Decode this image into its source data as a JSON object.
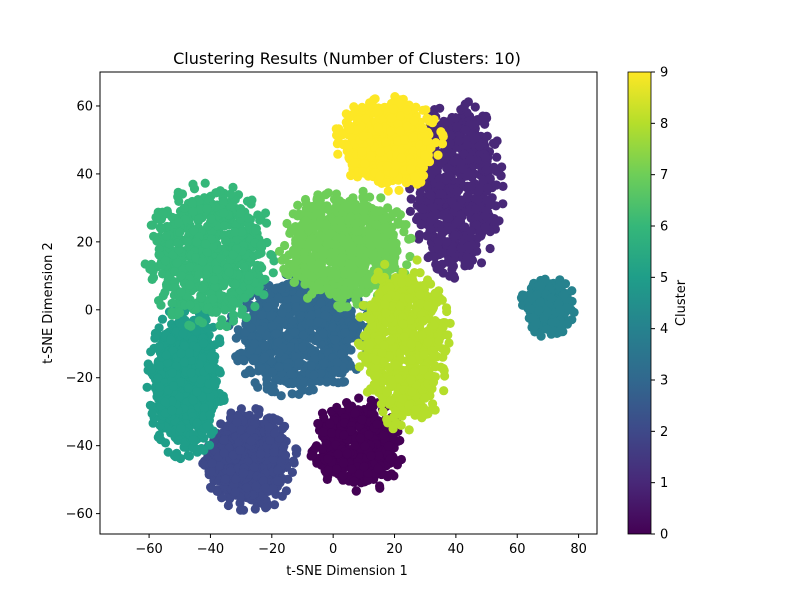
{
  "chart_data": {
    "type": "scatter",
    "title": "Clustering Results (Number of Clusters: 10)",
    "xlabel": "t-SNE Dimension 1",
    "ylabel": "t-SNE Dimension 2",
    "xlim": [
      -76,
      86
    ],
    "ylim": [
      -66,
      70
    ],
    "xticks": [
      -60,
      -40,
      -20,
      0,
      20,
      40,
      60,
      80
    ],
    "yticks": [
      -60,
      -40,
      -20,
      0,
      20,
      40,
      60
    ],
    "grid": false,
    "legend": "none",
    "colorbar": {
      "label": "Cluster",
      "range": [
        0,
        9
      ],
      "ticks": [
        0,
        1,
        2,
        3,
        4,
        5,
        6,
        7,
        8,
        9
      ],
      "colormap": "viridis",
      "colors": [
        "#440154",
        "#482878",
        "#3e4989",
        "#31688e",
        "#26828e",
        "#1f9e89",
        "#35b779",
        "#6ece58",
        "#b5de2b",
        "#fde725"
      ]
    },
    "clusters": [
      {
        "cluster": 0,
        "color": "#440154",
        "center": [
          8,
          -40
        ],
        "spread": [
          12,
          11
        ],
        "n": 520
      },
      {
        "cluster": 1,
        "color": "#482878",
        "center": [
          40,
          36
        ],
        "spread": [
          12,
          21
        ],
        "n": 750
      },
      {
        "cluster": 2,
        "color": "#3e4989",
        "center": [
          -27,
          -44
        ],
        "spread": [
          12,
          12
        ],
        "n": 620
      },
      {
        "cluster": 3,
        "color": "#31688e",
        "center": [
          -11,
          -7
        ],
        "spread": [
          18,
          15
        ],
        "n": 950
      },
      {
        "cluster": 4,
        "color": "#26828e",
        "center": [
          70,
          1
        ],
        "spread": [
          7,
          7
        ],
        "n": 320
      },
      {
        "cluster": 5,
        "color": "#1f9e89",
        "center": [
          -48,
          -21
        ],
        "spread": [
          10,
          18
        ],
        "n": 780
      },
      {
        "cluster": 6,
        "color": "#35b779",
        "center": [
          -40,
          16
        ],
        "spread": [
          17,
          17
        ],
        "n": 800
      },
      {
        "cluster": 7,
        "color": "#6ece58",
        "center": [
          4,
          18
        ],
        "spread": [
          17,
          14
        ],
        "n": 800
      },
      {
        "cluster": 8,
        "color": "#b5de2b",
        "center": [
          23,
          -10
        ],
        "spread": [
          12,
          20
        ],
        "n": 700
      },
      {
        "cluster": 9,
        "color": "#fde725",
        "center": [
          18,
          49
        ],
        "spread": [
          14,
          11
        ],
        "n": 650
      }
    ]
  }
}
